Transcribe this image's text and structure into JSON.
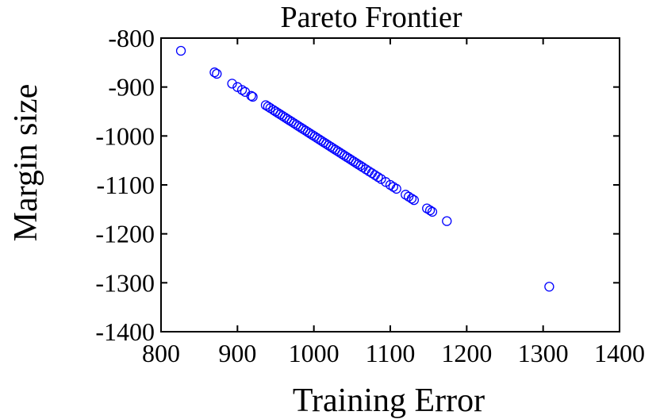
{
  "chart_data": {
    "type": "scatter",
    "title": "Pareto Frontier",
    "xlabel": "Training Error",
    "ylabel": "Margin size",
    "xlim": [
      800,
      1400
    ],
    "ylim": [
      -1400,
      -800
    ],
    "xticks": [
      800,
      900,
      1000,
      1100,
      1200,
      1300,
      1400
    ],
    "yticks": [
      -800,
      -900,
      -1000,
      -1100,
      -1200,
      -1300,
      -1400
    ],
    "xtick_labels": [
      "800",
      "900",
      "1000",
      "1100",
      "1200",
      "1300",
      "1400"
    ],
    "ytick_labels": [
      "-800",
      "-900",
      "-1000",
      "-1100",
      "-1200",
      "-1300",
      "-1400"
    ],
    "grid": false,
    "legend": false,
    "marker": "open-circle",
    "color": "#0000ff",
    "series": [
      {
        "x": [
          826,
          870,
          873,
          893,
          900,
          906,
          910,
          918,
          920,
          937,
          940,
          943,
          947,
          950,
          953,
          956,
          959,
          962,
          965,
          968,
          971,
          974,
          977,
          980,
          983,
          986,
          989,
          992,
          995,
          998,
          1001,
          1004,
          1007,
          1010,
          1013,
          1016,
          1019,
          1022,
          1025,
          1028,
          1031,
          1034,
          1037,
          1040,
          1043,
          1046,
          1049,
          1052,
          1055,
          1058,
          1061,
          1064,
          1068,
          1072,
          1076,
          1080,
          1084,
          1088,
          1094,
          1100,
          1104,
          1108,
          1120,
          1124,
          1128,
          1131,
          1148,
          1152,
          1155,
          1174,
          1308
        ],
        "y": [
          -826,
          -870,
          -873,
          -893,
          -900,
          -906,
          -910,
          -918,
          -920,
          -937,
          -940,
          -943,
          -947,
          -950,
          -953,
          -956,
          -959,
          -962,
          -965,
          -968,
          -971,
          -974,
          -977,
          -980,
          -983,
          -986,
          -989,
          -992,
          -995,
          -998,
          -1001,
          -1004,
          -1007,
          -1010,
          -1013,
          -1016,
          -1019,
          -1022,
          -1025,
          -1028,
          -1031,
          -1034,
          -1037,
          -1040,
          -1043,
          -1046,
          -1049,
          -1052,
          -1055,
          -1058,
          -1061,
          -1064,
          -1068,
          -1072,
          -1076,
          -1080,
          -1084,
          -1088,
          -1094,
          -1100,
          -1104,
          -1108,
          -1120,
          -1124,
          -1128,
          -1131,
          -1148,
          -1152,
          -1155,
          -1174,
          -1308
        ]
      }
    ]
  }
}
